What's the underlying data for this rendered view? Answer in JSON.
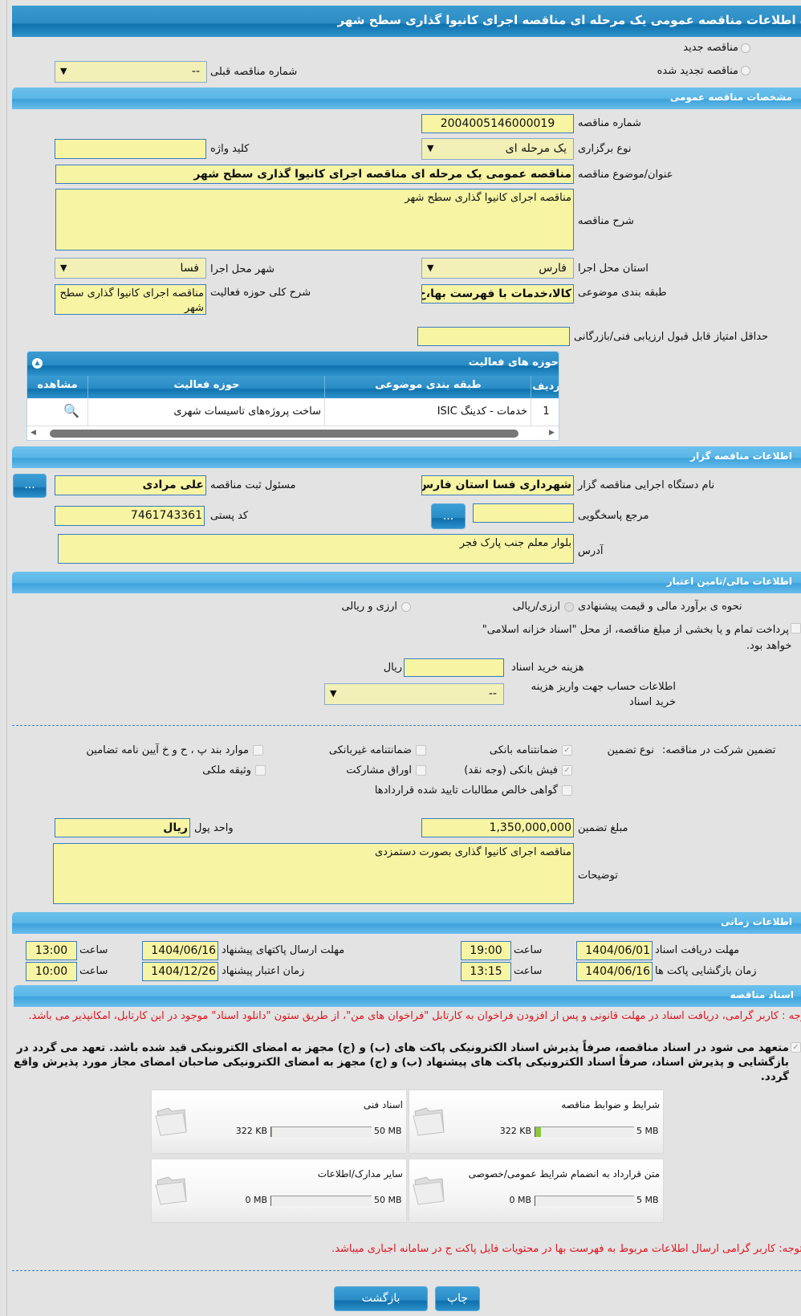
{
  "title": "مشاهده اطلاعات مناقصه عمومی یک مرحله ای مناقصه اجرای کانیوا گذاری سطح شهر",
  "top": {
    "radio_new": "مناقصه جدید",
    "radio_renewed": "مناقصه تجدید شده",
    "prev_number_label": "شماره مناقصه قبلی",
    "prev_number_value": "--"
  },
  "general": {
    "header": "مشخصات مناقصه عمومی",
    "number_label": "شماره مناقصه",
    "number": "2004005146000019",
    "type_label": "نوع برگزاری",
    "type": "یک مرحله ای",
    "keyword_label": "کلید واژه",
    "keyword": "",
    "subject_label": "عنوان/موضوع مناقصه",
    "subject": "مناقصه عمومی یک مرحله ای مناقصه اجرای کانیوا گذاری سطح شهر",
    "desc_label": "شرح مناقصه",
    "desc": "مناقصه اجرای کانیوا گذاری سطح شهر",
    "province_label": "استان محل اجرا",
    "province": "فارس",
    "city_label": "شهر محل اجرا",
    "city": "فسا",
    "category_label": "طبقه بندی موضوعی",
    "category": "کالا،خدمات با فهرست بها،خ",
    "activity_desc_label": "شرح کلی حوزه فعالیت",
    "activity_desc": "مناقصه اجرای کانیوا گذاری سطح شهر",
    "min_score_label": "حداقل امتیاز قابل قبول ارزیابی فنی/بازرگانی",
    "min_score": ""
  },
  "activities": {
    "header": "حوزه های فعالیت",
    "columns": [
      "ردیف",
      "طبقه بندی موضوعی",
      "حوزه فعالیت",
      "مشاهده"
    ],
    "rows": [
      {
        "row": "1",
        "category": "خدمات - کدینگ ISIC",
        "activity": "ساخت پروژه‌های تاسیسات شهری"
      }
    ]
  },
  "organizer": {
    "header": "اطلاعات مناقصه گزار",
    "org_label": "نام دستگاه اجرایی مناقصه گزار",
    "org": "شهرداری فسا استان فارس",
    "resp_label": "مسئول ثبت مناقصه",
    "resp": "علی مرادی",
    "ref_label": "مرجع پاسخگویی",
    "ref": "",
    "postal_label": "کد پستی",
    "postal": "7461743361",
    "address_label": "آدرس",
    "address": "بلوار معلم جنب پارک فجر",
    "more": "..."
  },
  "finance": {
    "header": "اطلاعات مالی/تامین اعتبار",
    "method_label": "نحوه ی برآورد مالی و قیمت پیشنهادی",
    "opt1": "ارزی/ریالی",
    "opt2": "ارزی و ریالی",
    "treasury": "پرداخت تمام و یا بخشی از مبلغ مناقصه، از محل \"اسناد خزانه اسلامی\"",
    "treasury2": "خواهد بود.",
    "cost_label": "هزینه خرید اسناد",
    "cost": "",
    "cost_unit": "ریال",
    "account_label": "اطلاعات حساب جهت واریز هزینه خرید اسناد",
    "account": "--"
  },
  "guarantee": {
    "label": "تضمین شرکت در مناقصه:",
    "type_label": "نوع تضمین",
    "items": [
      {
        "label": "ضمانتنامه بانکی",
        "checked": true
      },
      {
        "label": "ضمانتنامه غیربانکی",
        "checked": false
      },
      {
        "label": "موارد بند پ ، ح و خ آیین نامه تضامین",
        "checked": false
      },
      {
        "label": "فیش بانکی (وجه نقد)",
        "checked": true
      },
      {
        "label": "اوراق مشارکت",
        "checked": false
      },
      {
        "label": "وثیقه ملکی",
        "checked": false
      },
      {
        "label": "گواهی خالص مطالبات تایید شده قراردادها",
        "checked": false
      }
    ],
    "amount_label": "مبلغ تضمین",
    "amount": "1,350,000,000",
    "unit_label": "واحد پول",
    "unit": "ریال",
    "remarks_label": "توضیحات",
    "remarks": "مناقصه اجرای کانیوا گذاری بصورت دستمزدی"
  },
  "timing": {
    "header": "اطلاعات زمانی",
    "hour": "ساعت",
    "doc_deadline_label": "مهلت دریافت اسناد",
    "doc_deadline": "1404/06/01",
    "doc_time": "19:00",
    "submit_label": "مهلت ارسال پاکتهای پیشنهاد",
    "submit_date": "1404/06/16",
    "submit_time": "13:00",
    "open_label": "زمان بازگشایی پاکت ها",
    "open_date": "1404/06/16",
    "open_time": "13:15",
    "valid_label": "زمان اعتبار پیشنهاد",
    "valid_date": "1404/12/26",
    "valid_time": "10:00"
  },
  "docs": {
    "header": "اسناد مناقصه",
    "note1": "توجه : کاربر گرامی، دریافت اسناد در مهلت قانونی و پس از افزودن فراخوان به کارتابل \"فراخوان های من\"، از طریق ستون \"دانلود اسناد\" موجود در این کارتابل، امکانپذیر می باشد.",
    "commit": "متعهد می شود در اسناد مناقصه، صرفاً پذیرش اسناد الکترونیکی پاکت های (ب) و (ج) مجهز به امضای الکترونیکی قید شده باشد. تعهد می گردد در بازگشایی و پذیرش اسناد، صرفاً اسناد الکترونیکی پاکت های پیشنهاد (ب) و (ج) مجهز به امضای الکترونیکی صاحبان امضای مجاز مورد پذیرش واقع گردد.",
    "files": [
      {
        "name": "شرایط و ضوابط مناقصه",
        "used": "322 KB",
        "max": "5 MB",
        "fill_percent": 6
      },
      {
        "name": "اسناد فنی",
        "used": "322 KB",
        "max": "50 MB",
        "fill_percent": 1
      },
      {
        "name": "متن قرارداد به انضمام شرایط عمومی/خصوصی",
        "used": "0 MB",
        "max": "5 MB",
        "fill_percent": 0
      },
      {
        "name": "سایر مدارک/اطلاعات",
        "used": "0 MB",
        "max": "50 MB",
        "fill_percent": 0
      }
    ],
    "note2": "توجه: کاربر گرامی ارسال اطلاعات مربوط به فهرست بها در محتویات فایل پاکت ج در سامانه اجباری میباشد."
  },
  "buttons": {
    "back": "بازگشت",
    "print": "چاپ"
  },
  "colors": {
    "accent": "#2c8cc4",
    "field": "#f7f5a4",
    "warning": "#e0141e",
    "progress": "#8cc63f"
  }
}
